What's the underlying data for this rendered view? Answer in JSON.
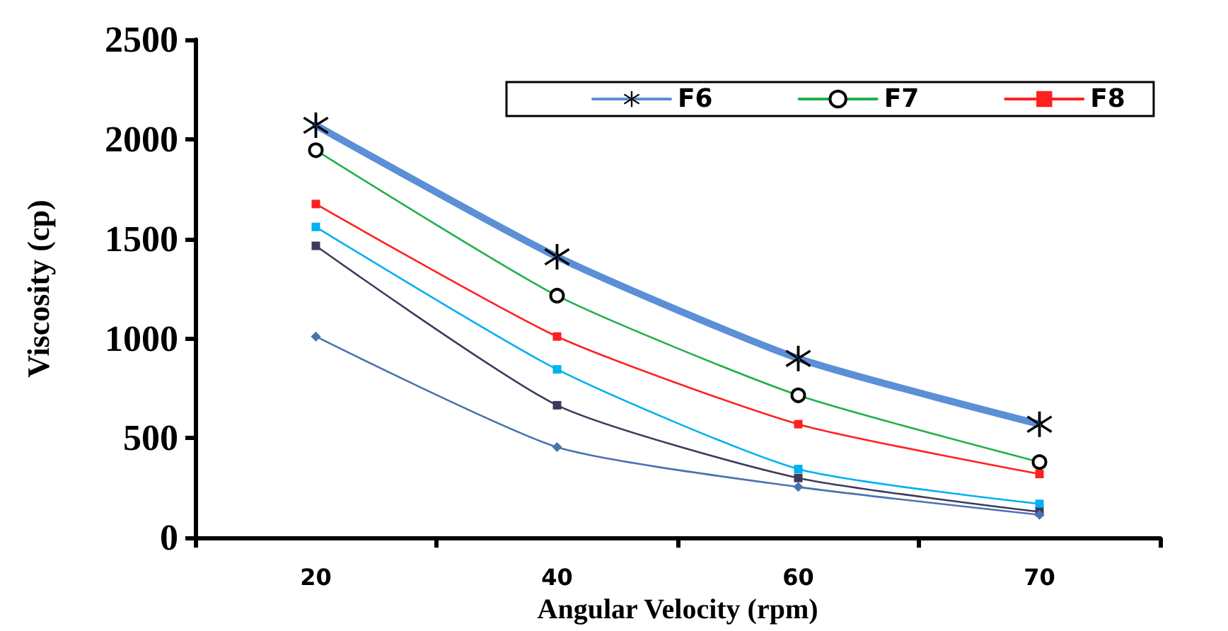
{
  "chart_data": {
    "type": "line",
    "xlabel": "Angular Velocity (rpm)",
    "ylabel": "Viscosity (cp)",
    "categories": [
      "20",
      "40",
      "60",
      "70"
    ],
    "ylim": [
      0,
      2500
    ],
    "yticks": [
      0,
      500,
      1000,
      1500,
      2000,
      2500
    ],
    "grid": false,
    "legend": "top right",
    "series": [
      {
        "name": "F6",
        "color": "#5b8fd6",
        "marker": "cross",
        "values": [
          2070,
          1410,
          900,
          570
        ]
      },
      {
        "name": "F7",
        "color": "#22b04b",
        "marker": "circle",
        "values": [
          1945,
          1215,
          715,
          380
        ]
      },
      {
        "name": "F8",
        "color": "#ff2020",
        "marker": "square",
        "values": [
          1675,
          1010,
          570,
          320
        ]
      },
      {
        "color": "#00b0f0",
        "marker": "square",
        "values": [
          1560,
          845,
          345,
          170
        ]
      },
      {
        "color": "#3d3a5c",
        "marker": "square",
        "values": [
          1465,
          665,
          300,
          130
        ]
      },
      {
        "color": "#4a72b0",
        "marker": "diamond",
        "values": [
          1010,
          455,
          255,
          115
        ]
      }
    ]
  }
}
